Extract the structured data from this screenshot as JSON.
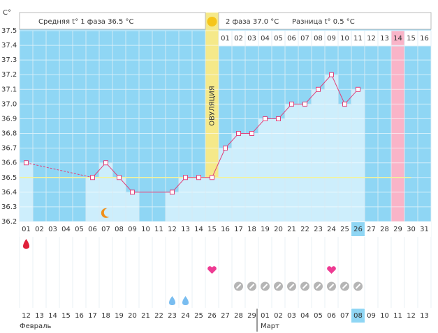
{
  "chart_data": {
    "type": "line",
    "unit": "C°",
    "phase1_text": "Средняя t° 1 фаза 36.5 °C",
    "phase2_text": "2 фаза 37.0 °C",
    "diff_text": "Разница t° 0.5 °C",
    "ovulation_label": "ОВУЛЯЦИЯ",
    "ovulation_index": 14,
    "coverline": 36.5,
    "categories": [
      "01",
      "02",
      "03",
      "04",
      "05",
      "06",
      "07",
      "08",
      "09",
      "10",
      "11",
      "12",
      "13",
      "14",
      "15",
      "16",
      "17",
      "18",
      "19",
      "20",
      "21",
      "22",
      "23",
      "24",
      "25",
      "26",
      "27",
      "28",
      "29",
      "30",
      "31"
    ],
    "series": [
      {
        "color": "#e0407a",
        "values": [
          36.6,
          null,
          null,
          null,
          null,
          36.5,
          36.6,
          36.5,
          36.4,
          null,
          null,
          36.4,
          36.5,
          36.5,
          36.5,
          36.7,
          36.8,
          36.8,
          36.9,
          36.9,
          37.0,
          37.0,
          37.1,
          37.2,
          37.0,
          37.1,
          null,
          null,
          null,
          null,
          null
        ]
      }
    ],
    "ylim": [
      36.2,
      37.5
    ],
    "yticks": [
      36.2,
      36.3,
      36.4,
      {
        "value": 36.5,
        "label": "36.5"
      },
      36.6,
      36.7,
      36.8,
      36.9,
      {
        "value": 37,
        "label": "37.0"
      },
      37.1,
      37.2,
      37.3,
      37.4,
      37.5
    ],
    "grid": true,
    "phase2_days": [
      "01",
      "02",
      "03",
      "04",
      "05",
      "06",
      "07",
      "08",
      "09",
      "10",
      "11",
      "12",
      "13",
      "14",
      "15",
      "16"
    ],
    "expected_period_index": 28,
    "today_index": 25,
    "dates": [
      "12",
      "13",
      "14",
      "15",
      "16",
      "17",
      "18",
      "19",
      "20",
      "21",
      "22",
      "23",
      "24",
      "25",
      "26",
      "27",
      "28",
      "29",
      "01",
      "02",
      "03",
      "04",
      "05",
      "06",
      "07",
      "08",
      "09",
      "10",
      "11",
      "12",
      "13"
    ],
    "weekend_indices": [
      1,
      2,
      8,
      9,
      15,
      16,
      22,
      23,
      29,
      30
    ],
    "months": [
      {
        "label": "Февраль",
        "start": 0
      },
      {
        "label": "Март",
        "start": 18
      }
    ],
    "menstruation_indices": [
      0
    ],
    "moon_index": 6,
    "intercourse_indices": [
      14,
      23
    ],
    "pill_indices": [
      16,
      17,
      18,
      19,
      20,
      21,
      22,
      23,
      24,
      25
    ],
    "mucus_indices": [
      11,
      12
    ]
  }
}
